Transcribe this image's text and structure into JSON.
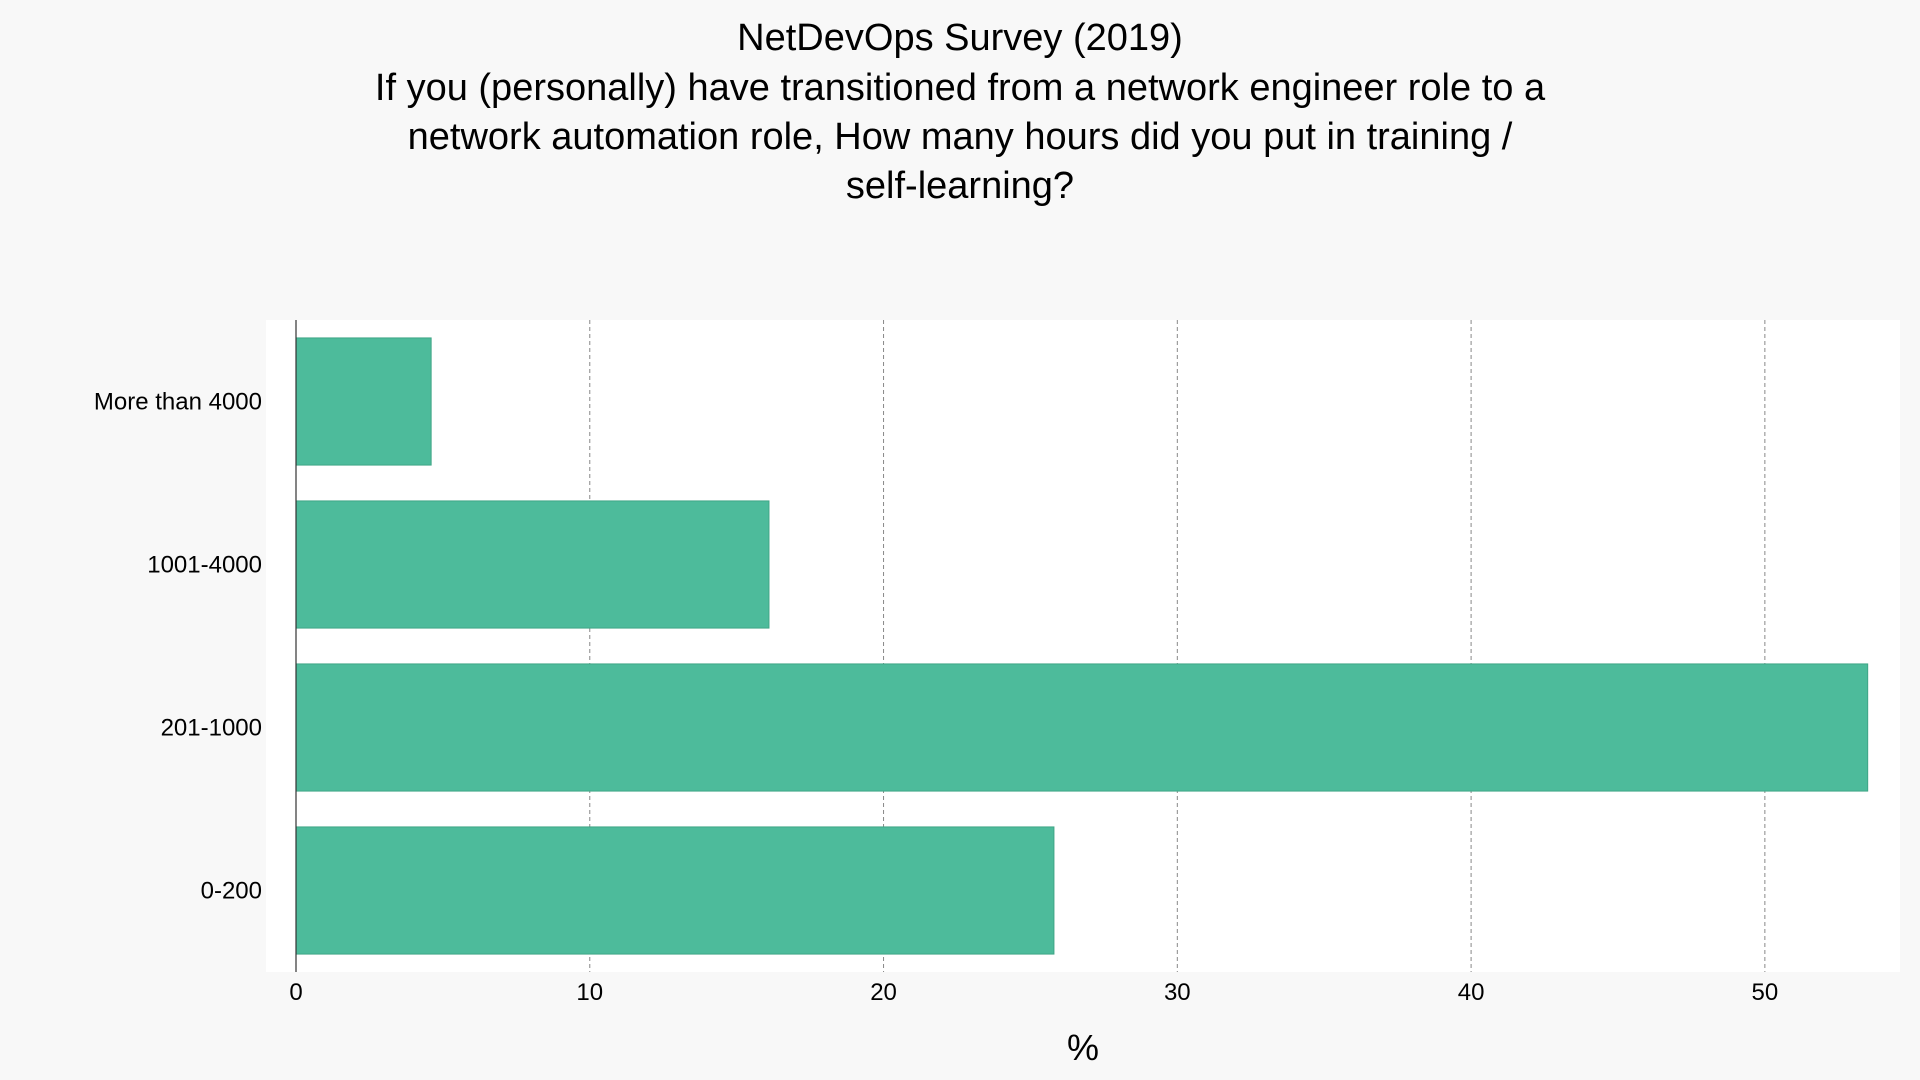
{
  "chart_data": {
    "type": "bar",
    "orientation": "horizontal",
    "title": "NetDevOps Survey (2019)",
    "subtitle_lines": [
      "If you (personally) have transitioned from a network engineer role to a",
      "network automation role, How many hours did you put in training /",
      "self-learning?"
    ],
    "categories": [
      "More than 4000",
      "1001-4000",
      "201-1000",
      "0-200"
    ],
    "values": [
      4.6,
      16.1,
      53.5,
      25.8
    ],
    "xlabel": "%",
    "ylabel": "",
    "xlim": [
      0,
      54.6
    ],
    "xticks": [
      0,
      10,
      20,
      30,
      40,
      50
    ],
    "xtick_labels": [
      "0",
      "10",
      "20",
      "30",
      "40",
      "50"
    ],
    "grid": "vertical dashed",
    "legend": "none",
    "bar_color": "#4dbb9b",
    "plot_background": "#ffffff",
    "page_background": "#f8f8f8"
  }
}
